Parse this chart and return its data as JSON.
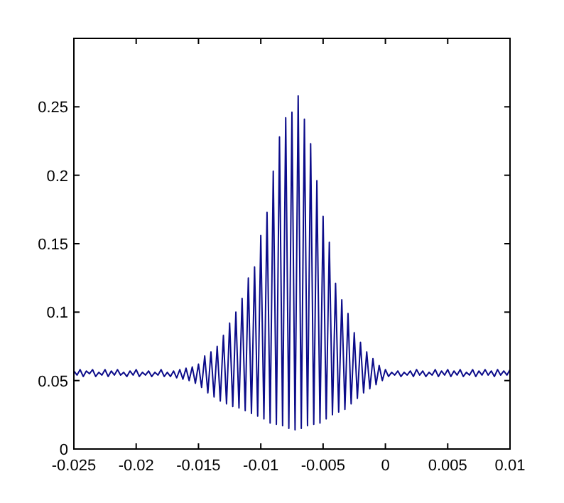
{
  "chart_data": {
    "type": "line",
    "xlim": [
      -0.025,
      0.01
    ],
    "ylim": [
      0,
      0.3
    ],
    "xticks": [
      -0.025,
      -0.02,
      -0.015,
      -0.01,
      -0.005,
      0,
      0.005,
      0.01
    ],
    "yticks": [
      0,
      0.05,
      0.1,
      0.15,
      0.2,
      0.25
    ],
    "grid": false,
    "series": [
      {
        "color": "#0c0c8a",
        "x": [
          -0.025,
          -0.02475,
          -0.0245,
          -0.02425,
          -0.024,
          -0.02375,
          -0.0235,
          -0.02325,
          -0.023,
          -0.02275,
          -0.0225,
          -0.02225,
          -0.022,
          -0.02175,
          -0.0215,
          -0.02125,
          -0.021,
          -0.02075,
          -0.0205,
          -0.02025,
          -0.02,
          -0.01975,
          -0.0195,
          -0.01925,
          -0.019,
          -0.01875,
          -0.0185,
          -0.01825,
          -0.018,
          -0.01775,
          -0.0175,
          -0.01725,
          -0.017,
          -0.01675,
          -0.0165,
          -0.01625,
          -0.016,
          -0.01575,
          -0.0155,
          -0.01525,
          -0.015,
          -0.01475,
          -0.0145,
          -0.01425,
          -0.014,
          -0.01375,
          -0.0135,
          -0.01325,
          -0.013,
          -0.01275,
          -0.0125,
          -0.01225,
          -0.012,
          -0.01175,
          -0.0115,
          -0.01125,
          -0.011,
          -0.01075,
          -0.0105,
          -0.01025,
          -0.01,
          -0.00975,
          -0.0095,
          -0.00925,
          -0.009,
          -0.00875,
          -0.0085,
          -0.00825,
          -0.008,
          -0.00775,
          -0.0075,
          -0.00725,
          -0.007,
          -0.00675,
          -0.0065,
          -0.00625,
          -0.006,
          -0.00575,
          -0.0055,
          -0.00525,
          -0.005,
          -0.00475,
          -0.0045,
          -0.00425,
          -0.004,
          -0.00375,
          -0.0035,
          -0.00325,
          -0.003,
          -0.00275,
          -0.0025,
          -0.00225,
          -0.002,
          -0.00175,
          -0.0015,
          -0.00125,
          -0.001,
          -0.00075,
          -0.0005,
          -0.00025,
          0,
          0.00025,
          0.0005,
          0.00075,
          0.001,
          0.00125,
          0.0015,
          0.00175,
          0.002,
          0.00225,
          0.0025,
          0.00275,
          0.003,
          0.00325,
          0.0035,
          0.00375,
          0.004,
          0.00425,
          0.0045,
          0.00475,
          0.005,
          0.00525,
          0.0055,
          0.00575,
          0.006,
          0.00625,
          0.0065,
          0.00675,
          0.007,
          0.00725,
          0.0075,
          0.00775,
          0.008,
          0.00825,
          0.0085,
          0.00875,
          0.009,
          0.00925,
          0.0095,
          0.00975,
          0.01
        ],
        "values": [
          0.057,
          0.054,
          0.058,
          0.053,
          0.057,
          0.055,
          0.058,
          0.053,
          0.056,
          0.054,
          0.058,
          0.053,
          0.057,
          0.054,
          0.058,
          0.054,
          0.056,
          0.053,
          0.057,
          0.054,
          0.058,
          0.053,
          0.056,
          0.054,
          0.057,
          0.053,
          0.056,
          0.054,
          0.058,
          0.053,
          0.056,
          0.053,
          0.057,
          0.052,
          0.058,
          0.051,
          0.059,
          0.05,
          0.06,
          0.048,
          0.062,
          0.045,
          0.068,
          0.041,
          0.071,
          0.038,
          0.075,
          0.035,
          0.083,
          0.033,
          0.092,
          0.031,
          0.1,
          0.03,
          0.11,
          0.028,
          0.125,
          0.026,
          0.133,
          0.024,
          0.156,
          0.022,
          0.173,
          0.019,
          0.203,
          0.018,
          0.228,
          0.017,
          0.242,
          0.015,
          0.246,
          0.014,
          0.258,
          0.015,
          0.241,
          0.017,
          0.223,
          0.018,
          0.196,
          0.019,
          0.17,
          0.022,
          0.151,
          0.025,
          0.121,
          0.027,
          0.109,
          0.029,
          0.099,
          0.033,
          0.085,
          0.037,
          0.078,
          0.041,
          0.071,
          0.044,
          0.066,
          0.047,
          0.061,
          0.05,
          0.058,
          0.053,
          0.056,
          0.054,
          0.057,
          0.053,
          0.056,
          0.054,
          0.057,
          0.053,
          0.058,
          0.054,
          0.057,
          0.053,
          0.056,
          0.054,
          0.058,
          0.053,
          0.057,
          0.054,
          0.058,
          0.053,
          0.057,
          0.054,
          0.058,
          0.053,
          0.056,
          0.054,
          0.058,
          0.053,
          0.057,
          0.054,
          0.058,
          0.054,
          0.057,
          0.053,
          0.058,
          0.054,
          0.057,
          0.054,
          0.058
        ]
      }
    ]
  }
}
